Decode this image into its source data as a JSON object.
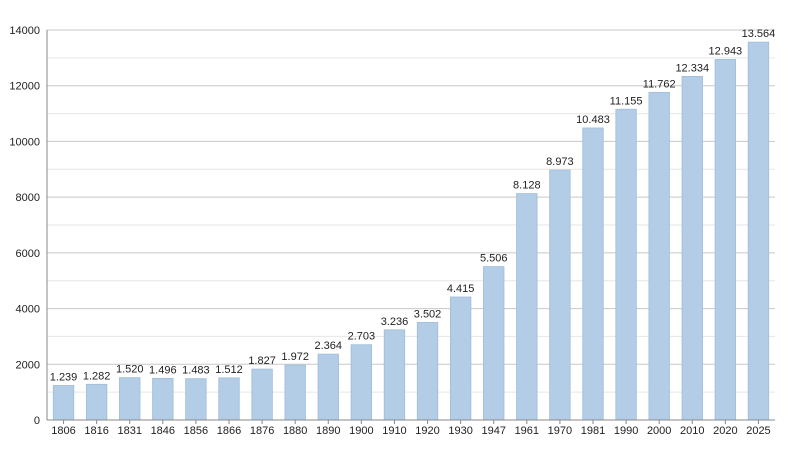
{
  "chart_data": {
    "type": "bar",
    "categories": [
      "1806",
      "1816",
      "1831",
      "1846",
      "1856",
      "1866",
      "1876",
      "1880",
      "1890",
      "1900",
      "1910",
      "1920",
      "1930",
      "1947",
      "1961",
      "1970",
      "1981",
      "1990",
      "2000",
      "2010",
      "2020",
      "2025"
    ],
    "values": [
      1239,
      1282,
      1520,
      1496,
      1483,
      1512,
      1827,
      1972,
      2364,
      2703,
      3236,
      3502,
      4415,
      5506,
      8128,
      8973,
      10483,
      11155,
      11762,
      12334,
      12943,
      13564
    ],
    "data_labels": [
      "1.239",
      "1.282",
      "1.520",
      "1.496",
      "1.483",
      "1.512",
      "1.827",
      "1.972",
      "2.364",
      "2.703",
      "3.236",
      "3.502",
      "4.415",
      "5.506",
      "8.128",
      "8.973",
      "10.483",
      "11.155",
      "11.762",
      "12.334",
      "12.943",
      "13.564"
    ],
    "y_ticks": [
      0,
      2000,
      4000,
      6000,
      8000,
      10000,
      12000,
      14000
    ],
    "ylim": [
      0,
      14000
    ],
    "grid": true,
    "title": "",
    "xlabel": "",
    "ylabel": "",
    "colors": {
      "bar": "#b3cde6",
      "bar_edge": "#9fbcd9",
      "grid": "#c8c8c8",
      "minor_grid": "#e6e6e6",
      "axis": "#888888"
    }
  }
}
